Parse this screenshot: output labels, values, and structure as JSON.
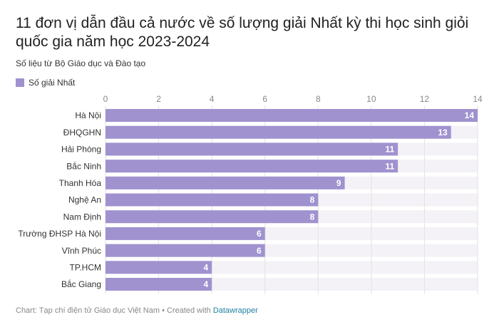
{
  "chart_data": {
    "type": "bar",
    "orientation": "horizontal",
    "title": "11 đơn vị dẫn đầu cả nước về số lượng giải Nhất kỳ thi học sinh giỏi quốc gia năm học 2023-2024",
    "subtitle": "Số liệu từ Bộ Giáo dục và Đào tạo",
    "series": [
      {
        "name": "Số giải Nhất",
        "color": "#a092cf",
        "values": [
          14,
          13,
          11,
          11,
          9,
          8,
          8,
          6,
          6,
          4,
          4
        ]
      }
    ],
    "categories": [
      "Hà Nội",
      "ĐHQGHN",
      "Hải Phòng",
      "Bắc Ninh",
      "Thanh Hóa",
      "Nghệ An",
      "Nam Định",
      "Trường ĐHSP Hà Nội",
      "Vĩnh Phúc",
      "TP.HCM",
      "Bắc Giang"
    ],
    "xlim": [
      0,
      14
    ],
    "xticks": [
      0,
      2,
      4,
      6,
      8,
      10,
      12,
      14
    ],
    "grid": true,
    "legend": "top-left",
    "footer": {
      "source": "Chart: Tạp chí điện tử Giáo dục Việt Nam",
      "credit": "• Created with",
      "link": "Datawrapper"
    }
  }
}
